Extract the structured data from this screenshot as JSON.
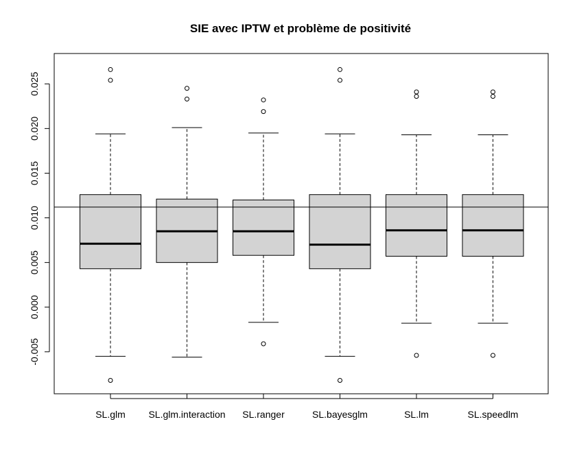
{
  "chart_data": {
    "type": "boxplot",
    "title": "SIE avec IPTW et problème de positivité",
    "xlabel": "",
    "ylabel": "",
    "ylim": [
      -0.0097,
      0.0284
    ],
    "yticks": [
      -0.005,
      0.0,
      0.005,
      0.01,
      0.015,
      0.02,
      0.025
    ],
    "ytick_labels": [
      "-0.005",
      "0.000",
      "0.005",
      "0.010",
      "0.015",
      "0.020",
      "0.025"
    ],
    "reference_line": 0.0112,
    "categories": [
      "SL.glm",
      "SL.glm.interaction",
      "SL.ranger",
      "SL.bayesglm",
      "SL.lm",
      "SL.speedlm"
    ],
    "boxes": [
      {
        "name": "SL.glm",
        "whisker_low": -0.0055,
        "q1": 0.0043,
        "median": 0.0071,
        "q3": 0.0126,
        "whisker_high": 0.0194,
        "outliers": [
          0.0266,
          0.0254,
          -0.0082
        ]
      },
      {
        "name": "SL.glm.interaction",
        "whisker_low": -0.0056,
        "q1": 0.005,
        "median": 0.0085,
        "q3": 0.0121,
        "whisker_high": 0.0201,
        "outliers": [
          0.0245,
          0.0233
        ]
      },
      {
        "name": "SL.ranger",
        "whisker_low": -0.0017,
        "q1": 0.0058,
        "median": 0.0085,
        "q3": 0.012,
        "whisker_high": 0.0195,
        "outliers": [
          0.0232,
          0.0219,
          -0.0041
        ]
      },
      {
        "name": "SL.bayesglm",
        "whisker_low": -0.0055,
        "q1": 0.0043,
        "median": 0.007,
        "q3": 0.0126,
        "whisker_high": 0.0194,
        "outliers": [
          0.0266,
          0.0254,
          -0.0082
        ]
      },
      {
        "name": "SL.lm",
        "whisker_low": -0.0018,
        "q1": 0.0057,
        "median": 0.0086,
        "q3": 0.0126,
        "whisker_high": 0.0193,
        "outliers": [
          0.0241,
          0.0236,
          -0.0054
        ]
      },
      {
        "name": "SL.speedlm",
        "whisker_low": -0.0018,
        "q1": 0.0057,
        "median": 0.0086,
        "q3": 0.0126,
        "whisker_high": 0.0193,
        "outliers": [
          0.0241,
          0.0236,
          -0.0054
        ]
      }
    ],
    "colors": {
      "box_fill": "#d3d3d3",
      "stroke": "#000000"
    },
    "grid": false,
    "legend": "none"
  }
}
